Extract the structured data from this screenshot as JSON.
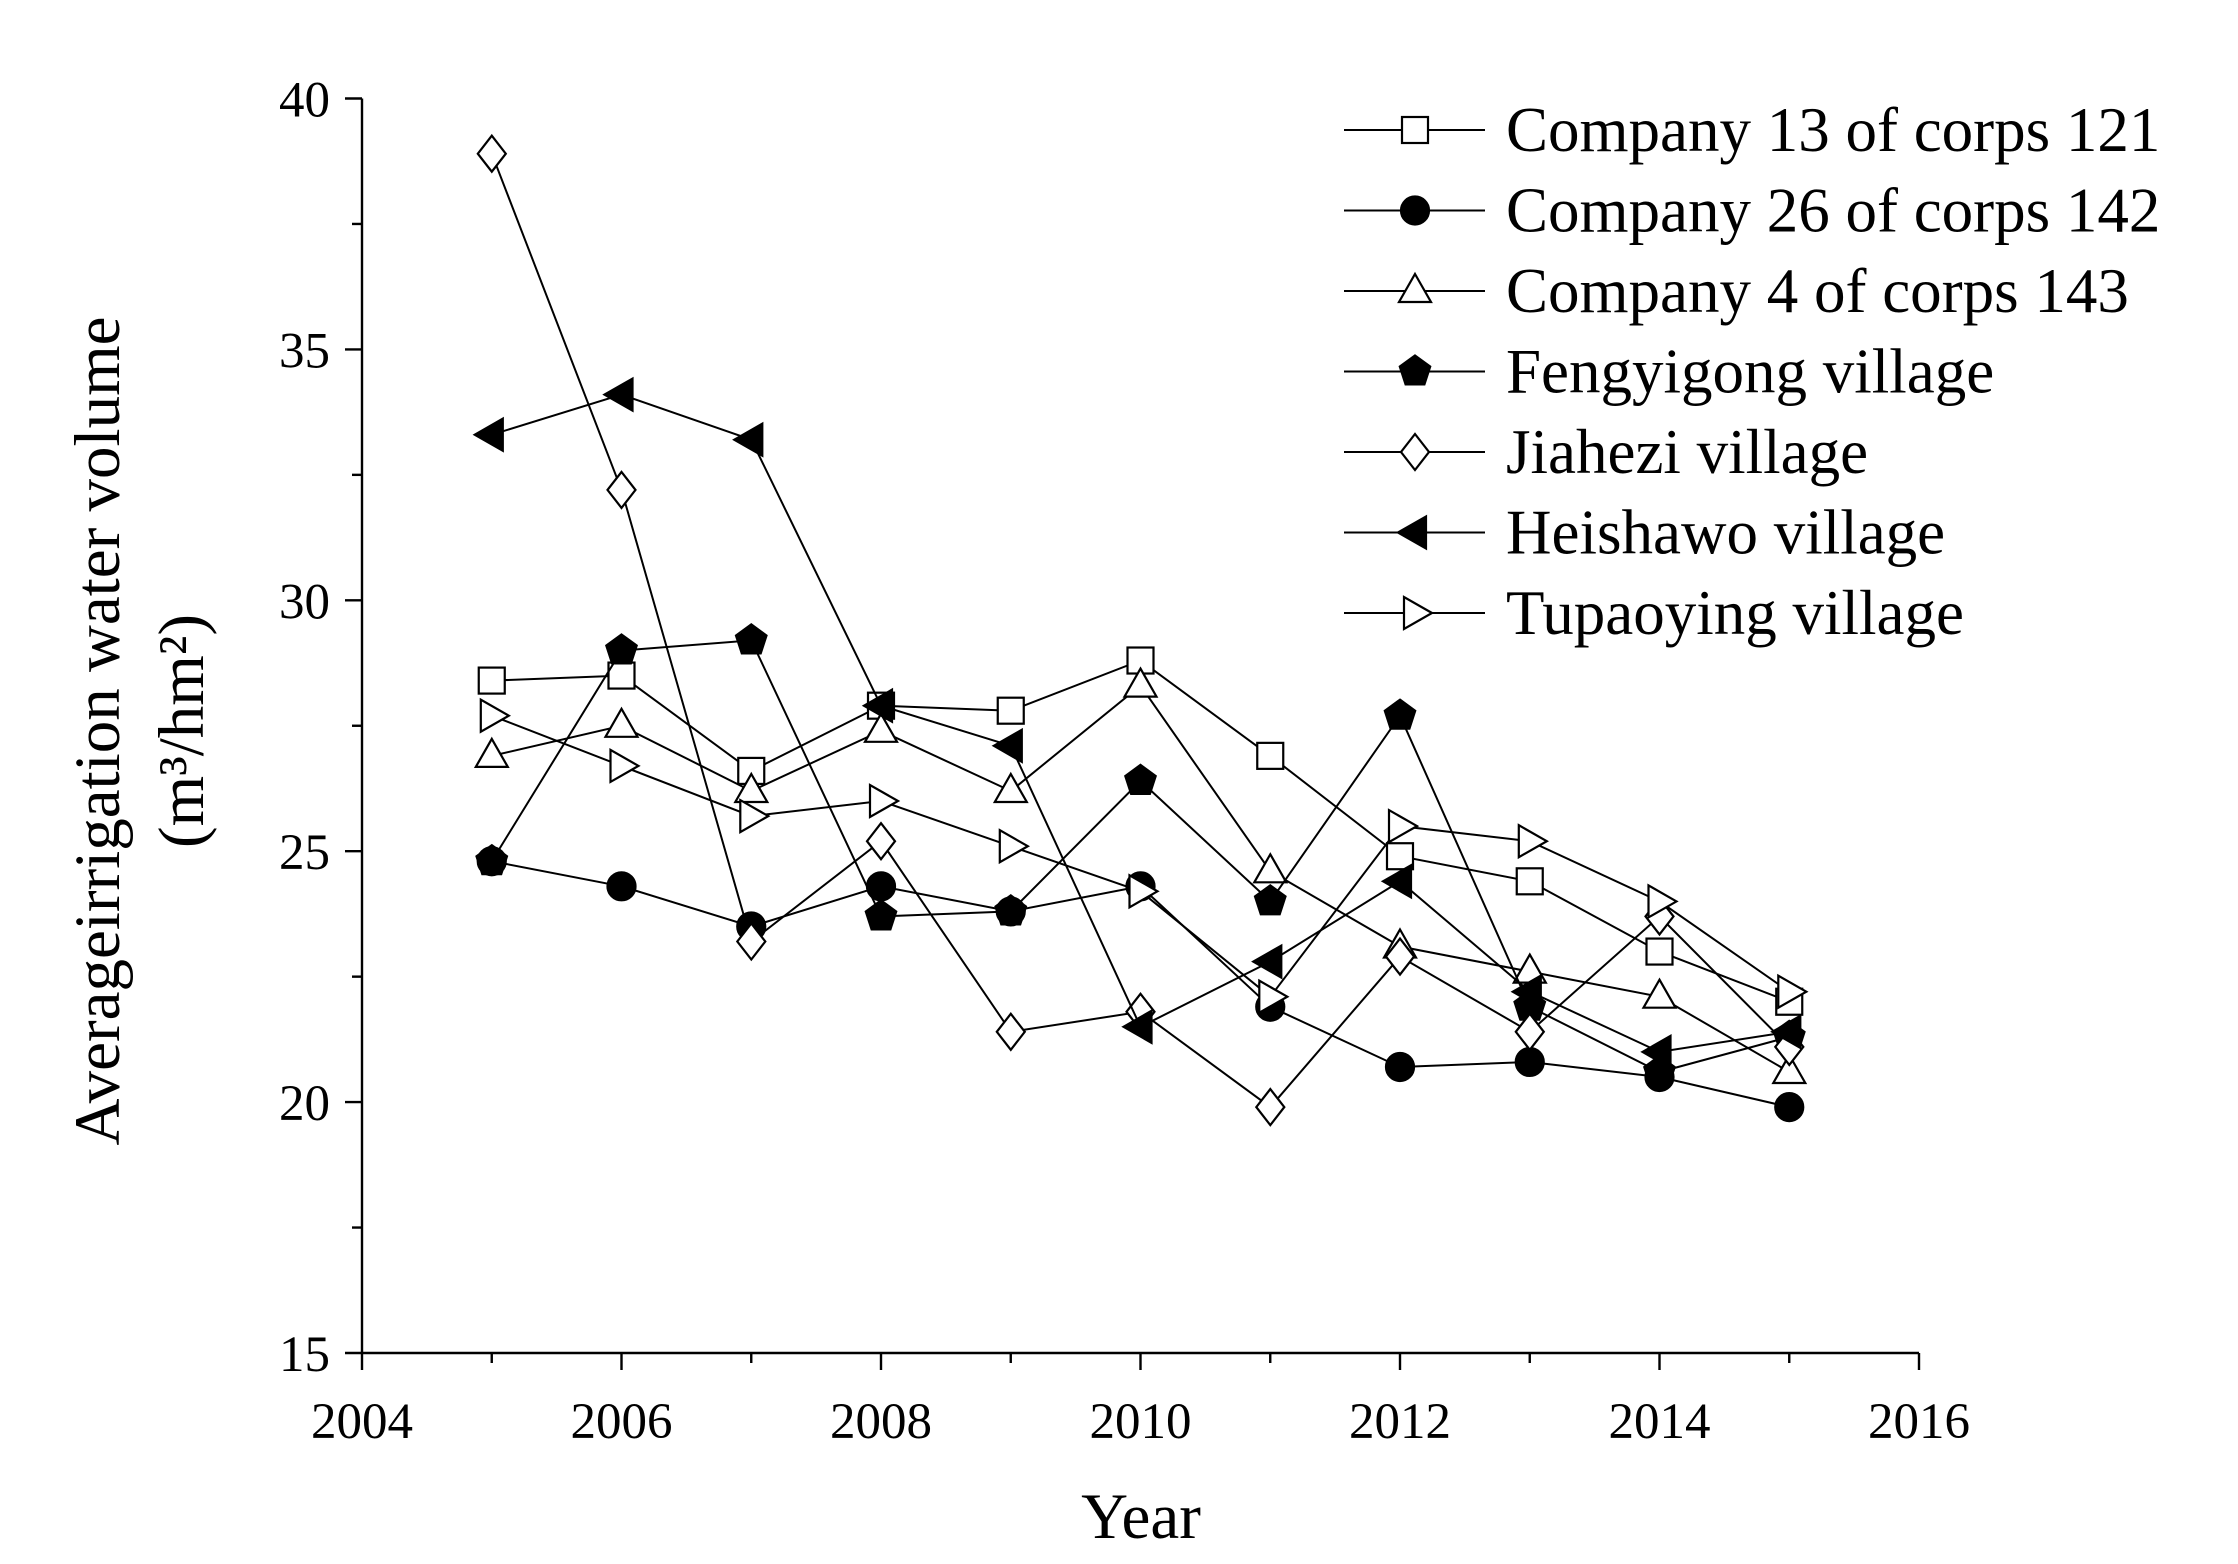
{
  "chart_data": {
    "type": "line",
    "title": "",
    "xlabel": "Year",
    "ylabel": "Averageirrigation water volume",
    "ylabel_unit": "(m³/hm²)",
    "xlim": [
      2004,
      2016
    ],
    "ylim": [
      15,
      40
    ],
    "xticks": [
      "2004",
      "2006",
      "2008",
      "2010",
      "2012",
      "2014",
      "2016"
    ],
    "yticks": [
      "15",
      "20",
      "25",
      "30",
      "35",
      "40"
    ],
    "grid": false,
    "legend_position": "top-right",
    "x": [
      2005,
      2006,
      2007,
      2008,
      2009,
      2010,
      2011,
      2012,
      2013,
      2014,
      2015
    ],
    "series": [
      {
        "name": "Company 13 of corps 121",
        "marker": "square",
        "filled": false,
        "color": "#000000",
        "values": [
          28.4,
          28.5,
          26.6,
          27.9,
          27.8,
          28.8,
          26.9,
          24.9,
          24.4,
          23.0,
          22.0
        ]
      },
      {
        "name": "Company 26 of corps 142",
        "marker": "circle",
        "filled": true,
        "color": "#000000",
        "values": [
          24.8,
          24.3,
          23.5,
          24.3,
          23.8,
          24.3,
          21.9,
          20.7,
          20.8,
          20.5,
          19.9
        ]
      },
      {
        "name": "Company 4 of corps 143",
        "marker": "triangle-up",
        "filled": false,
        "color": "#000000",
        "values": [
          26.9,
          27.5,
          26.2,
          27.4,
          26.2,
          28.3,
          24.6,
          23.1,
          22.6,
          22.1,
          20.6
        ]
      },
      {
        "name": "Fengyigong village",
        "marker": "pentagon",
        "filled": true,
        "color": "#000000",
        "values": [
          24.8,
          29.0,
          29.2,
          23.7,
          23.8,
          26.4,
          24.0,
          27.7,
          21.9,
          20.6,
          21.3
        ]
      },
      {
        "name": "Jiahezi village",
        "marker": "diamond",
        "filled": false,
        "color": "#000000",
        "values": [
          38.9,
          32.2,
          23.2,
          25.2,
          21.4,
          21.8,
          19.9,
          22.9,
          21.4,
          23.7,
          21.1
        ]
      },
      {
        "name": "Heishawo village",
        "marker": "triangle-left",
        "filled": true,
        "color": "#000000",
        "values": [
          33.3,
          34.1,
          33.2,
          27.9,
          27.1,
          21.5,
          22.8,
          24.4,
          22.2,
          21.0,
          21.4
        ]
      },
      {
        "name": "Tupaoying village",
        "marker": "triangle-right",
        "filled": false,
        "color": "#000000",
        "values": [
          27.7,
          26.7,
          25.7,
          26.0,
          25.1,
          24.2,
          22.1,
          25.5,
          25.2,
          24.0,
          22.2
        ]
      }
    ]
  }
}
